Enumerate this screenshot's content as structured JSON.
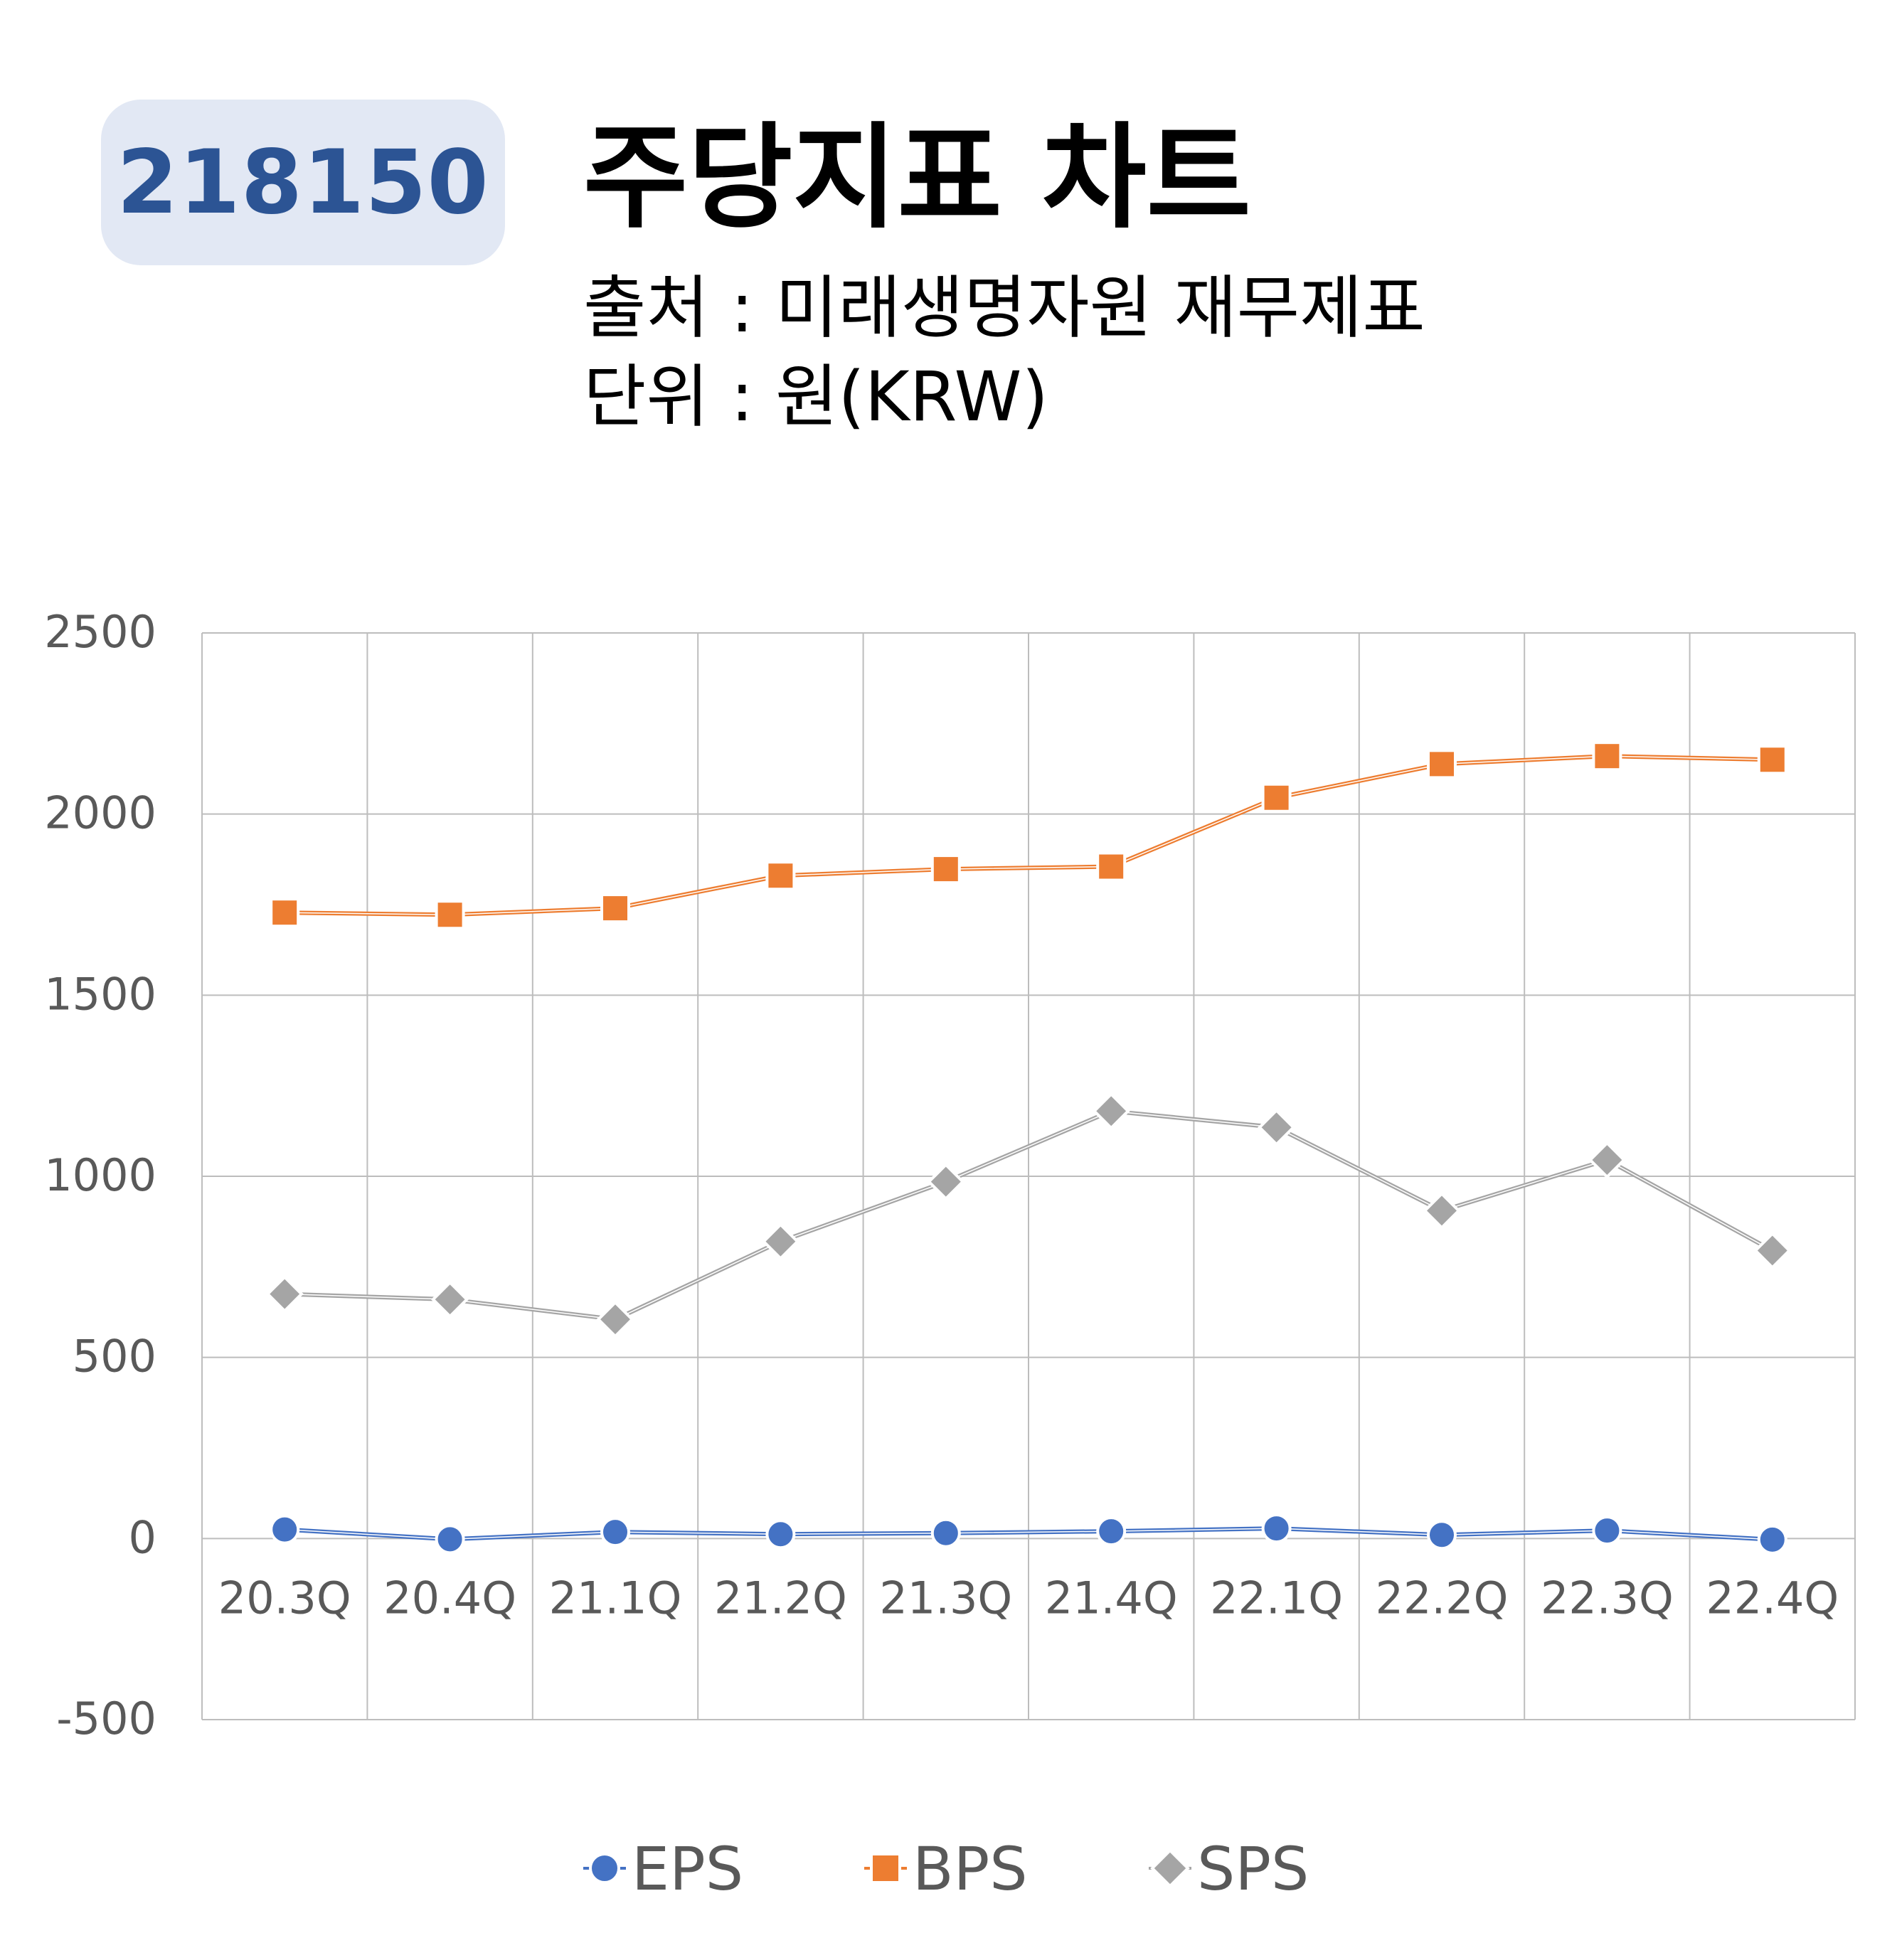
{
  "header": {
    "code": "218150",
    "title": "주당지표 차트",
    "source": "출처 : 미래생명자원 재무제표",
    "unit": "단위 : 원(KRW)"
  },
  "chart_data": {
    "type": "line",
    "categories": [
      "20.3Q",
      "20.4Q",
      "21.1Q",
      "21.2Q",
      "21.3Q",
      "21.4Q",
      "22.1Q",
      "22.2Q",
      "22.3Q",
      "22.4Q"
    ],
    "ylim": [
      -500,
      2500
    ],
    "yticks": [
      "2500",
      "2000",
      "1500",
      "1000",
      "500",
      "0",
      "-500"
    ],
    "grid": true,
    "legend_position": "bottom",
    "series": [
      {
        "name": "EPS",
        "color": "#4472c4",
        "marker": "circle",
        "values": [
          25,
          -2,
          18,
          12,
          15,
          20,
          28,
          10,
          22,
          -3
        ]
      },
      {
        "name": "BPS",
        "color": "#ed7d31",
        "marker": "square",
        "values": [
          1728,
          1722,
          1740,
          1830,
          1848,
          1855,
          2045,
          2138,
          2160,
          2150
        ]
      },
      {
        "name": "SPS",
        "color": "#a5a5a5",
        "marker": "diamond",
        "values": [
          675,
          660,
          605,
          820,
          985,
          1180,
          1135,
          905,
          1045,
          795
        ]
      }
    ]
  }
}
